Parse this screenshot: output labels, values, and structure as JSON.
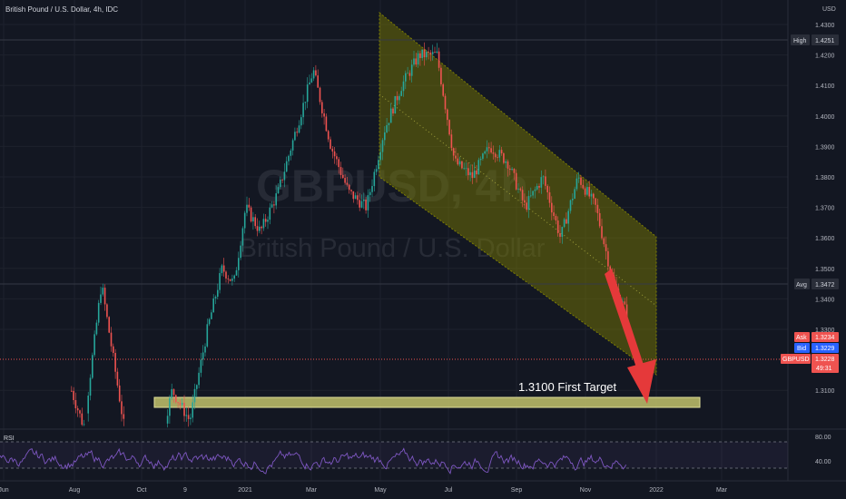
{
  "header": {
    "symbol_title": "British Pound / U.S. Dollar, 4h, IDC"
  },
  "price_scale": {
    "currency": "USD",
    "ticks": [
      "1.4300",
      "1.4200",
      "1.4100",
      "1.4000",
      "1.3900",
      "1.3800",
      "1.3700",
      "1.3600",
      "1.3500",
      "1.3400",
      "1.3300",
      "1.3100"
    ]
  },
  "badges": {
    "high": {
      "label": "High",
      "value": "1.4251",
      "color": "#2a2e39"
    },
    "avg": {
      "label": "Avg",
      "value": "1.3472",
      "color": "#2a2e39"
    },
    "ask": {
      "label": "Ask",
      "value": "1.3234",
      "color": "#ef5350"
    },
    "bid": {
      "label": "Bid",
      "value": "1.3229",
      "color": "#2962ff"
    },
    "symbol": {
      "label": "GBPUSD",
      "value": "1.3228",
      "countdown": "49:31",
      "color": "#ef5350"
    }
  },
  "watermark": {
    "ticker": "GBPUSD, 4h",
    "name": "British Pound / U.S. Dollar"
  },
  "annotation": {
    "target_text": "1.3100  First Target"
  },
  "time_axis": {
    "labels": [
      "Jun",
      "Aug",
      "Oct",
      "9",
      "2021",
      "Mar",
      "May",
      "Jul",
      "Sep",
      "Nov",
      "2022",
      "Mar"
    ]
  },
  "rsi": {
    "label": "RSI",
    "ticks": [
      "80.00",
      "40.00"
    ]
  },
  "colors": {
    "up": "#26a69a",
    "down": "#ef5350",
    "channel": "#808000",
    "target_zone": "#c2c26b",
    "arrow": "#e5393a",
    "rsi_line": "#7e57c2",
    "background": "#131722"
  },
  "chart_data": {
    "type": "candlestick",
    "title": "British Pound / U.S. Dollar, 4h, IDC",
    "ylim": [
      1.3,
      1.435
    ],
    "key_levels": {
      "high": 1.4251,
      "avg": 1.3472,
      "ask": 1.3234,
      "bid": 1.3229,
      "last": 1.3228,
      "first_target": 1.31
    },
    "price_path": [
      [
        "Jul 2020",
        1.265
      ],
      [
        "Jul 2020",
        1.315
      ],
      [
        "Aug 2020",
        1.298
      ],
      [
        "Aug 2020",
        1.345
      ],
      [
        "Sep 2020",
        1.29
      ],
      [
        "Oct 2020",
        1.285
      ],
      [
        "Oct 2020",
        1.31
      ],
      [
        "Nov 2020",
        1.3
      ],
      [
        "Nov 2020",
        1.33
      ],
      [
        "Dec 2020",
        1.35
      ],
      [
        "Dec 2020",
        1.345
      ],
      [
        "Dec 2020",
        1.37
      ],
      [
        "Jan 2021",
        1.362
      ],
      [
        "Jan 2021",
        1.375
      ],
      [
        "Feb 2021",
        1.395
      ],
      [
        "Feb 2021",
        1.415
      ],
      [
        "Mar 2021",
        1.39
      ],
      [
        "Mar 2021",
        1.375
      ],
      [
        "Apr 2021",
        1.37
      ],
      [
        "Apr 2021",
        1.395
      ],
      [
        "May 2021",
        1.41
      ],
      [
        "May 2021",
        1.42
      ],
      [
        "Jun 2021",
        1.42
      ],
      [
        "Jun 2021",
        1.385
      ],
      [
        "Jul 2021",
        1.38
      ],
      [
        "Jul 2021",
        1.39
      ],
      [
        "Aug 2021",
        1.385
      ],
      [
        "Aug 2021",
        1.37
      ],
      [
        "Sep 2021",
        1.38
      ],
      [
        "Sep 2021",
        1.36
      ],
      [
        "Oct 2021",
        1.38
      ],
      [
        "Oct 2021",
        1.37
      ],
      [
        "Nov 2021",
        1.345
      ],
      [
        "Nov 2021",
        1.332
      ],
      [
        "Dec 2021",
        1.3228
      ]
    ],
    "rsi_range": [
      20,
      100
    ]
  }
}
